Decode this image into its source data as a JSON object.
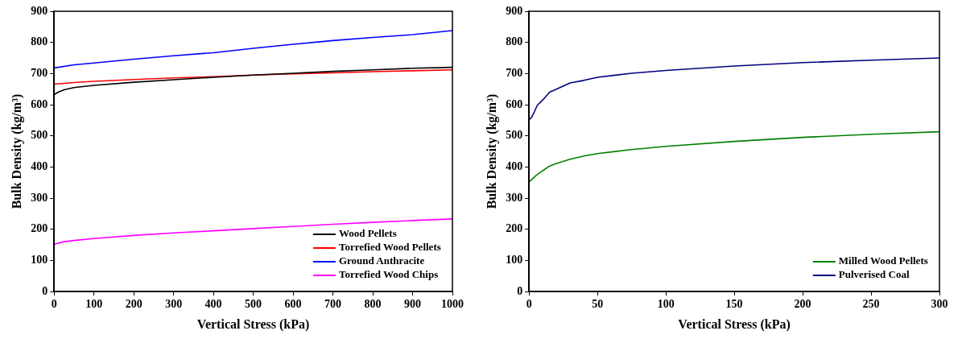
{
  "chart_data": [
    {
      "type": "line",
      "xlabel": "Vertical Stress (kPa)",
      "ylabel": "Bulk Density (kg/m³)",
      "xlim": [
        0,
        1000
      ],
      "ylim": [
        0,
        900
      ],
      "xticks": [
        0,
        100,
        200,
        300,
        400,
        500,
        600,
        700,
        800,
        900,
        1000
      ],
      "yticks": [
        0,
        100,
        200,
        300,
        400,
        500,
        600,
        700,
        800,
        900
      ],
      "legend": "bottom right",
      "marker": "none",
      "series": [
        {
          "name": "Wood Pellets",
          "color": "#000000",
          "x": [
            0,
            10,
            25,
            50,
            100,
            200,
            300,
            400,
            500,
            600,
            700,
            800,
            900,
            1000
          ],
          "values": [
            632,
            640,
            648,
            655,
            662,
            672,
            680,
            688,
            695,
            701,
            707,
            712,
            717,
            720
          ]
        },
        {
          "name": "Torrefied Wood Pellets",
          "color": "#ff0000",
          "x": [
            0,
            50,
            100,
            200,
            300,
            400,
            500,
            600,
            700,
            800,
            900,
            1000
          ],
          "values": [
            666,
            671,
            675,
            681,
            686,
            690,
            695,
            699,
            702,
            706,
            709,
            712
          ]
        },
        {
          "name": "Ground Anthracite",
          "color": "#0000ff",
          "x": [
            0,
            50,
            100,
            200,
            300,
            400,
            500,
            600,
            700,
            800,
            900,
            1000
          ],
          "values": [
            718,
            728,
            734,
            746,
            757,
            767,
            781,
            794,
            806,
            816,
            825,
            838
          ]
        },
        {
          "name": "Torrefied Wood Chips",
          "color": "#ff00ff",
          "x": [
            0,
            25,
            50,
            100,
            200,
            300,
            400,
            500,
            600,
            700,
            800,
            900,
            1000
          ],
          "values": [
            152,
            160,
            164,
            170,
            180,
            188,
            195,
            202,
            209,
            216,
            222,
            228,
            233
          ]
        }
      ]
    },
    {
      "type": "line",
      "xlabel": "Vertical Stress (kPa)",
      "ylabel": "Bulk Density (kg/m³)",
      "xlim": [
        0,
        300
      ],
      "ylim": [
        0,
        900
      ],
      "xticks": [
        0,
        50,
        100,
        150,
        200,
        250,
        300
      ],
      "yticks": [
        0,
        100,
        200,
        300,
        400,
        500,
        600,
        700,
        800,
        900
      ],
      "legend": "bottom right",
      "marker": "none",
      "series": [
        {
          "name": "Milled Wood Pellets",
          "color": "#008000",
          "x": [
            0,
            5,
            10,
            15,
            20,
            30,
            40,
            50,
            75,
            100,
            150,
            200,
            250,
            300
          ],
          "values": [
            352,
            372,
            388,
            403,
            411,
            425,
            435,
            443,
            456,
            466,
            482,
            495,
            505,
            513
          ]
        },
        {
          "name": "Pulverised Coal",
          "color": "#000080",
          "x": [
            0,
            2,
            4,
            6,
            10,
            15,
            20,
            30,
            40,
            50,
            75,
            100,
            150,
            200,
            250,
            300
          ],
          "values": [
            552,
            560,
            578,
            598,
            615,
            640,
            650,
            670,
            678,
            688,
            701,
            710,
            724,
            735,
            743,
            750
          ]
        }
      ]
    }
  ]
}
